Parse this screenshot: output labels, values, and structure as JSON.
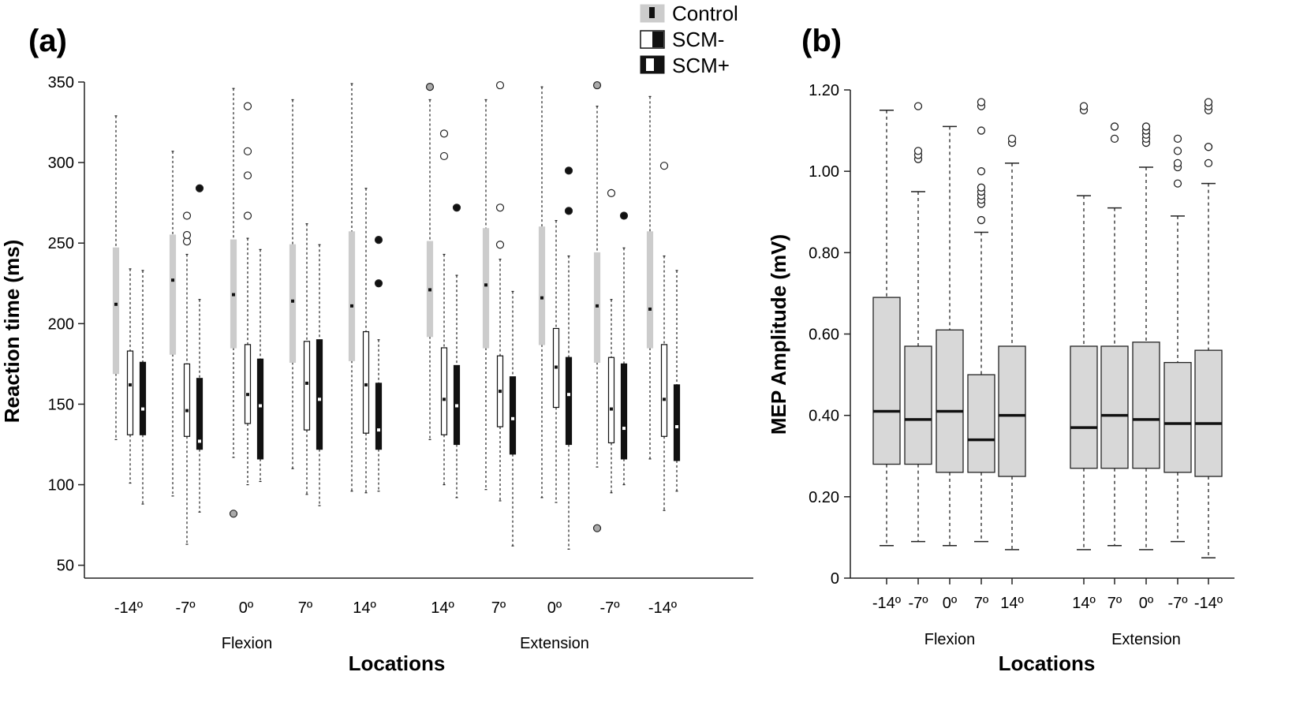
{
  "figure": {
    "legend": [
      {
        "key": "control",
        "label": "Control"
      },
      {
        "key": "scm_minus",
        "label": "SCM-"
      },
      {
        "key": "scm_plus",
        "label": "SCM+"
      }
    ]
  },
  "chart_data": [
    {
      "panel": "(a)",
      "type": "boxplot",
      "title": "",
      "xlabel": "Locations",
      "ylabel": "Reaction time (ms)",
      "ylim": [
        42,
        350
      ],
      "yticks": [
        50,
        100,
        150,
        200,
        250,
        300,
        350
      ],
      "groups": [
        {
          "name": "Flexion",
          "categories": [
            "-14º",
            "-7º",
            "0º",
            "7º",
            "14º"
          ]
        },
        {
          "name": "Extension",
          "categories": [
            "14º",
            "7º",
            "0º",
            "-7º",
            "-14º"
          ]
        }
      ],
      "series_names": [
        "Control",
        "SCM-",
        "SCM+"
      ],
      "boxes": [
        {
          "group": "Flexion",
          "cat": "-14º",
          "series": "Control",
          "min": 128,
          "q1": 169,
          "median": 212,
          "q3": 247,
          "max": 329,
          "outliers": []
        },
        {
          "group": "Flexion",
          "cat": "-14º",
          "series": "SCM-",
          "min": 101,
          "q1": 131,
          "median": 162,
          "q3": 183,
          "max": 234,
          "outliers": []
        },
        {
          "group": "Flexion",
          "cat": "-14º",
          "series": "SCM+",
          "min": 88,
          "q1": 131,
          "median": 147,
          "q3": 176,
          "max": 233,
          "outliers": []
        },
        {
          "group": "Flexion",
          "cat": "-7º",
          "series": "Control",
          "min": 93,
          "q1": 181,
          "median": 227,
          "q3": 255,
          "max": 307,
          "outliers": []
        },
        {
          "group": "Flexion",
          "cat": "-7º",
          "series": "SCM-",
          "min": 63,
          "q1": 130,
          "median": 146,
          "q3": 175,
          "max": 243,
          "outliers": [
            251,
            255,
            267
          ]
        },
        {
          "group": "Flexion",
          "cat": "-7º",
          "series": "SCM+",
          "min": 83,
          "q1": 122,
          "median": 127,
          "q3": 166,
          "max": 215,
          "outliers": [
            284
          ]
        },
        {
          "group": "Flexion",
          "cat": "0º",
          "series": "Control",
          "min": 117,
          "q1": 185,
          "median": 218,
          "q3": 252,
          "max": 346,
          "outliers": [
            82
          ]
        },
        {
          "group": "Flexion",
          "cat": "0º",
          "series": "SCM-",
          "min": 100,
          "q1": 138,
          "median": 156,
          "q3": 187,
          "max": 253,
          "outliers": [
            267,
            292,
            307,
            335
          ]
        },
        {
          "group": "Flexion",
          "cat": "0º",
          "series": "SCM+",
          "min": 102,
          "q1": 116,
          "median": 149,
          "q3": 178,
          "max": 246,
          "outliers": []
        },
        {
          "group": "Flexion",
          "cat": "7º",
          "series": "Control",
          "min": 110,
          "q1": 176,
          "median": 214,
          "q3": 249,
          "max": 339,
          "outliers": []
        },
        {
          "group": "Flexion",
          "cat": "7º",
          "series": "SCM-",
          "min": 94,
          "q1": 134,
          "median": 163,
          "q3": 189,
          "max": 262,
          "outliers": []
        },
        {
          "group": "Flexion",
          "cat": "7º",
          "series": "SCM+",
          "min": 87,
          "q1": 122,
          "median": 153,
          "q3": 190,
          "max": 249,
          "outliers": []
        },
        {
          "group": "Flexion",
          "cat": "14º",
          "series": "Control",
          "min": 96,
          "q1": 177,
          "median": 211,
          "q3": 257,
          "max": 349,
          "outliers": []
        },
        {
          "group": "Flexion",
          "cat": "14º",
          "series": "SCM-",
          "min": 95,
          "q1": 132,
          "median": 162,
          "q3": 195,
          "max": 284,
          "outliers": []
        },
        {
          "group": "Flexion",
          "cat": "14º",
          "series": "SCM+",
          "min": 96,
          "q1": 122,
          "median": 134,
          "q3": 163,
          "max": 190,
          "outliers": [
            225,
            252
          ]
        },
        {
          "group": "Extension",
          "cat": "14º",
          "series": "Control",
          "min": 128,
          "q1": 192,
          "median": 221,
          "q3": 251,
          "max": 339,
          "outliers": [
            347
          ]
        },
        {
          "group": "Extension",
          "cat": "14º",
          "series": "SCM-",
          "min": 100,
          "q1": 131,
          "median": 153,
          "q3": 185,
          "max": 243,
          "outliers": [
            304,
            318
          ]
        },
        {
          "group": "Extension",
          "cat": "14º",
          "series": "SCM+",
          "min": 92,
          "q1": 125,
          "median": 149,
          "q3": 174,
          "max": 230,
          "outliers": [
            272
          ]
        },
        {
          "group": "Extension",
          "cat": "7º",
          "series": "Control",
          "min": 97,
          "q1": 185,
          "median": 224,
          "q3": 259,
          "max": 339,
          "outliers": []
        },
        {
          "group": "Extension",
          "cat": "7º",
          "series": "SCM-",
          "min": 90,
          "q1": 136,
          "median": 158,
          "q3": 180,
          "max": 240,
          "outliers": [
            249,
            272,
            348
          ]
        },
        {
          "group": "Extension",
          "cat": "7º",
          "series": "SCM+",
          "min": 62,
          "q1": 119,
          "median": 141,
          "q3": 167,
          "max": 220,
          "outliers": []
        },
        {
          "group": "Extension",
          "cat": "0º",
          "series": "Control",
          "min": 92,
          "q1": 187,
          "median": 216,
          "q3": 260,
          "max": 347,
          "outliers": []
        },
        {
          "group": "Extension",
          "cat": "0º",
          "series": "SCM-",
          "min": 89,
          "q1": 148,
          "median": 173,
          "q3": 197,
          "max": 264,
          "outliers": []
        },
        {
          "group": "Extension",
          "cat": "0º",
          "series": "SCM+",
          "min": 60,
          "q1": 125,
          "median": 156,
          "q3": 179,
          "max": 242,
          "outliers": [
            270,
            295
          ]
        },
        {
          "group": "Extension",
          "cat": "-7º",
          "series": "Control",
          "min": 111,
          "q1": 176,
          "median": 211,
          "q3": 244,
          "max": 335,
          "outliers": [
            73,
            348
          ]
        },
        {
          "group": "Extension",
          "cat": "-7º",
          "series": "SCM-",
          "min": 95,
          "q1": 126,
          "median": 147,
          "q3": 179,
          "max": 215,
          "outliers": [
            281
          ]
        },
        {
          "group": "Extension",
          "cat": "-7º",
          "series": "SCM+",
          "min": 100,
          "q1": 116,
          "median": 135,
          "q3": 175,
          "max": 247,
          "outliers": [
            267
          ]
        },
        {
          "group": "Extension",
          "cat": "-14º",
          "series": "Control",
          "min": 116,
          "q1": 185,
          "median": 209,
          "q3": 257,
          "max": 341,
          "outliers": []
        },
        {
          "group": "Extension",
          "cat": "-14º",
          "series": "SCM-",
          "min": 84,
          "q1": 130,
          "median": 153,
          "q3": 187,
          "max": 242,
          "outliers": [
            298
          ]
        },
        {
          "group": "Extension",
          "cat": "-14º",
          "series": "SCM+",
          "min": 96,
          "q1": 115,
          "median": 136,
          "q3": 162,
          "max": 233,
          "outliers": []
        }
      ]
    },
    {
      "panel": "(b)",
      "type": "boxplot",
      "title": "",
      "xlabel": "Locations",
      "ylabel": "MEP Amplitude (mV)",
      "ylim": [
        0,
        1.2
      ],
      "yticks": [
        "0",
        "0.20",
        "0.40",
        "0.60",
        "0.80",
        "1.00",
        "1.20"
      ],
      "ytick_values": [
        0,
        0.2,
        0.4,
        0.6,
        0.8,
        1.0,
        1.2
      ],
      "groups": [
        {
          "name": "Flexion",
          "categories": [
            "-14º",
            "-7º",
            "0º",
            "7º",
            "14º"
          ]
        },
        {
          "name": "Extension",
          "categories": [
            "14º",
            "7º",
            "0º",
            "-7º",
            "-14º"
          ]
        }
      ],
      "boxes": [
        {
          "group": "Flexion",
          "cat": "-14º",
          "min": 0.08,
          "q1": 0.28,
          "median": 0.41,
          "q3": 0.69,
          "max": 1.15,
          "outliers": []
        },
        {
          "group": "Flexion",
          "cat": "-7º",
          "min": 0.09,
          "q1": 0.28,
          "median": 0.39,
          "q3": 0.57,
          "max": 0.95,
          "outliers": [
            1.03,
            1.04,
            1.05,
            1.16
          ]
        },
        {
          "group": "Flexion",
          "cat": "0º",
          "min": 0.08,
          "q1": 0.26,
          "median": 0.41,
          "q3": 0.61,
          "max": 1.11,
          "outliers": []
        },
        {
          "group": "Flexion",
          "cat": "7º",
          "min": 0.09,
          "q1": 0.26,
          "median": 0.34,
          "q3": 0.5,
          "max": 0.85,
          "outliers": [
            0.88,
            0.92,
            0.93,
            0.94,
            0.95,
            0.96,
            1.0,
            1.1,
            1.16,
            1.17
          ]
        },
        {
          "group": "Flexion",
          "cat": "14º",
          "min": 0.07,
          "q1": 0.25,
          "median": 0.4,
          "q3": 0.57,
          "max": 1.02,
          "outliers": [
            1.07,
            1.08
          ]
        },
        {
          "group": "Extension",
          "cat": "14º",
          "min": 0.07,
          "q1": 0.27,
          "median": 0.37,
          "q3": 0.57,
          "max": 0.94,
          "outliers": [
            1.15,
            1.16
          ]
        },
        {
          "group": "Extension",
          "cat": "7º",
          "min": 0.08,
          "q1": 0.27,
          "median": 0.4,
          "q3": 0.57,
          "max": 0.91,
          "outliers": [
            1.08,
            1.11
          ]
        },
        {
          "group": "Extension",
          "cat": "0º",
          "min": 0.07,
          "q1": 0.27,
          "median": 0.39,
          "q3": 0.58,
          "max": 1.01,
          "outliers": [
            1.07,
            1.08,
            1.09,
            1.1,
            1.11
          ]
        },
        {
          "group": "Extension",
          "cat": "-7º",
          "min": 0.09,
          "q1": 0.26,
          "median": 0.38,
          "q3": 0.53,
          "max": 0.89,
          "outliers": [
            0.97,
            1.01,
            1.02,
            1.05,
            1.08
          ]
        },
        {
          "group": "Extension",
          "cat": "-14º",
          "min": 0.05,
          "q1": 0.25,
          "median": 0.38,
          "q3": 0.56,
          "max": 0.97,
          "outliers": [
            1.02,
            1.06,
            1.06,
            1.15,
            1.16,
            1.17
          ]
        }
      ]
    }
  ]
}
